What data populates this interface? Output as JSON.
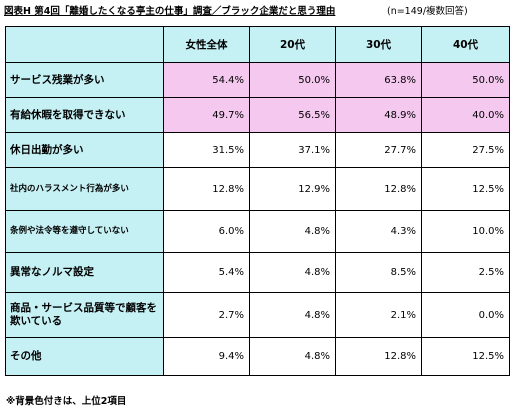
{
  "title": {
    "main": "図表H 第4回「離婚したくなる亭主の仕事」調査／ブラック企業だと思う理由",
    "note": "(n=149/複数回答)"
  },
  "table": {
    "headers": [
      "",
      "女性全体",
      "20代",
      "30代",
      "40代"
    ],
    "rows": [
      {
        "label": "サービス残業が多い",
        "values": [
          "54.4%",
          "50.0%",
          "63.8%",
          "50.0%"
        ],
        "highlight": true
      },
      {
        "label": "有給休暇を取得できない",
        "values": [
          "49.7%",
          "56.5%",
          "48.9%",
          "40.0%"
        ],
        "highlight": true
      },
      {
        "label": "休日出勤が多い",
        "values": [
          "31.5%",
          "37.1%",
          "27.7%",
          "27.5%"
        ],
        "highlight": false
      },
      {
        "label": "社内のハラスメント行為が多い",
        "values": [
          "12.8%",
          "12.9%",
          "12.8%",
          "12.5%"
        ],
        "highlight": false
      },
      {
        "label": "条例や法令等を遵守していない",
        "values": [
          "6.0%",
          "4.8%",
          "4.3%",
          "10.0%"
        ],
        "highlight": false
      },
      {
        "label": "異常なノルマ設定",
        "values": [
          "5.4%",
          "4.8%",
          "8.5%",
          "2.5%"
        ],
        "highlight": false
      },
      {
        "label": "商品・サービス品質等で顧客を欺いている",
        "values": [
          "2.7%",
          "4.8%",
          "2.1%",
          "0.0%"
        ],
        "highlight": false
      },
      {
        "label": "その他",
        "values": [
          "9.4%",
          "4.8%",
          "12.8%",
          "12.5%"
        ],
        "highlight": false
      }
    ]
  },
  "footnote": "※背景色付きは、上位2項目",
  "colors": {
    "header_bg": "#c5f0f4",
    "highlight_bg": "#f5c8f0"
  }
}
